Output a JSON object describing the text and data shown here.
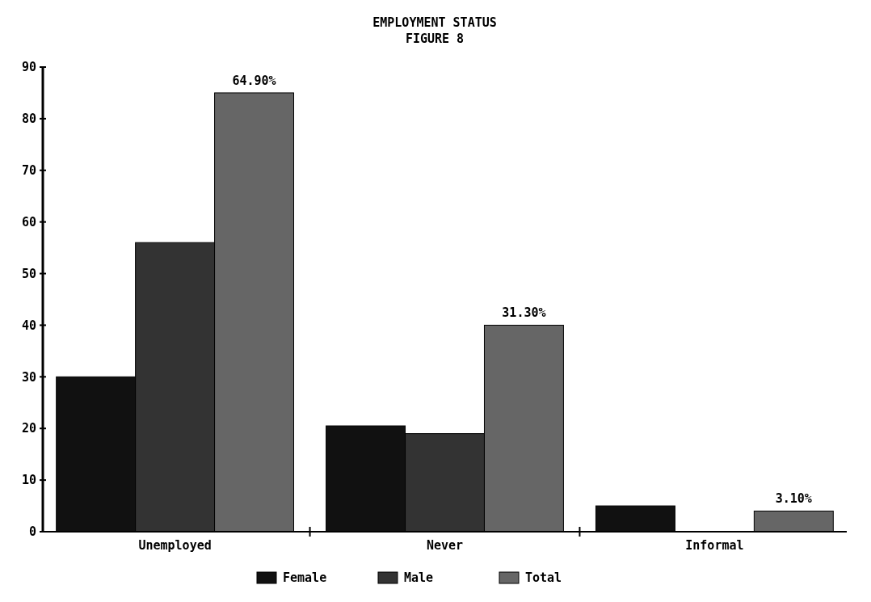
{
  "chart_data": {
    "type": "bar",
    "title": "EMPLOYMENT STATUS",
    "subtitle": "FIGURE 8",
    "categories": [
      "Unemployed",
      "Never",
      "Informal"
    ],
    "series": [
      {
        "name": "Female",
        "color": "#111111",
        "values": [
          30,
          20.5,
          5
        ]
      },
      {
        "name": "Male",
        "color": "#333333",
        "values": [
          56,
          19,
          0
        ]
      },
      {
        "name": "Total",
        "color": "#666666",
        "values": [
          85,
          40,
          4
        ]
      }
    ],
    "annotations": [
      "64.90%",
      "31.30%",
      "3.10%"
    ],
    "ylim": [
      0,
      90
    ],
    "yticks": [
      0,
      10,
      20,
      30,
      40,
      50,
      60,
      70,
      80,
      90
    ],
    "legend": "bottom"
  }
}
